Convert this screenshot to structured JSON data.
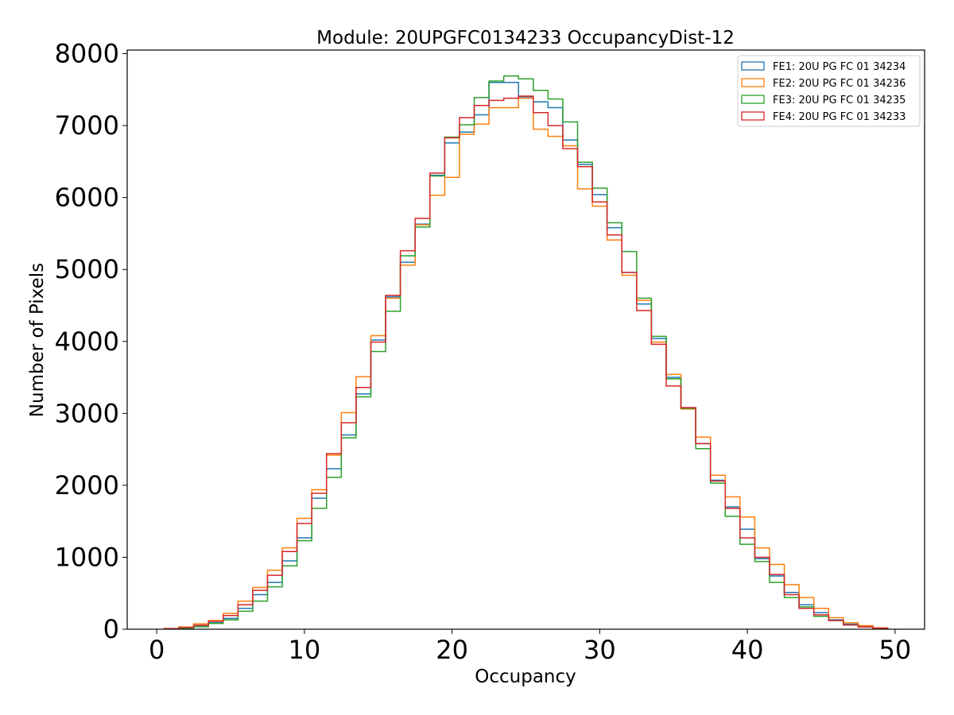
{
  "chart_data": {
    "type": "histogram-step",
    "title": "Module: 20UPGFC0134233 OccupancyDist-12",
    "xlabel": "Occupancy",
    "ylabel": "Number of Pixels",
    "xlim": [
      -2,
      52
    ],
    "ylim": [
      0,
      8050
    ],
    "xticks": [
      0,
      10,
      20,
      30,
      40,
      50
    ],
    "yticks": [
      0,
      1000,
      2000,
      3000,
      4000,
      5000,
      6000,
      7000,
      8000
    ],
    "grid": false,
    "legend_position": "top-right",
    "bins_start": 0.5,
    "bin_width": 1,
    "series": [
      {
        "name": "FE1: 20U PG FC 01 34234",
        "color": "#1f77b4",
        "values": [
          5,
          15,
          45,
          90,
          150,
          290,
          480,
          650,
          950,
          1270,
          1820,
          2230,
          2700,
          3270,
          4020,
          4620,
          5100,
          5630,
          6310,
          6760,
          6910,
          7150,
          7600,
          7600,
          7400,
          7330,
          7250,
          6800,
          6460,
          6040,
          5580,
          4960,
          4520,
          4040,
          3500,
          3080,
          2580,
          2070,
          1700,
          1390,
          980,
          740,
          510,
          340,
          230,
          130,
          70,
          40,
          20
        ]
      },
      {
        "name": "FE2: 20U PG FC 01 34236",
        "color": "#ff7f0e",
        "values": [
          10,
          30,
          75,
          120,
          220,
          390,
          580,
          820,
          1130,
          1540,
          1940,
          2420,
          3010,
          3510,
          4080,
          4600,
          5060,
          5620,
          6030,
          6280,
          6880,
          7020,
          7250,
          7250,
          7380,
          6950,
          6850,
          6720,
          6120,
          5880,
          5410,
          4920,
          4570,
          3990,
          3540,
          3060,
          2670,
          2140,
          1840,
          1560,
          1130,
          900,
          620,
          440,
          290,
          160,
          90,
          50,
          20
        ]
      },
      {
        "name": "FE3: 20U PG FC 01 34235",
        "color": "#2ca02c",
        "values": [
          5,
          10,
          35,
          80,
          130,
          250,
          390,
          590,
          880,
          1230,
          1680,
          2110,
          2660,
          3230,
          3860,
          4420,
          5190,
          5590,
          6300,
          6840,
          7010,
          7390,
          7620,
          7690,
          7650,
          7490,
          7370,
          7050,
          6490,
          6130,
          5650,
          5250,
          4600,
          4070,
          3480,
          3070,
          2510,
          2030,
          1570,
          1180,
          940,
          650,
          440,
          310,
          180,
          120,
          60,
          30,
          15
        ]
      },
      {
        "name": "FE4: 20U PG FC 01 34233",
        "color": "#d62728",
        "values": [
          8,
          25,
          55,
          110,
          190,
          340,
          540,
          750,
          1080,
          1470,
          1890,
          2440,
          2870,
          3360,
          3990,
          4640,
          5260,
          5710,
          6340,
          6830,
          7110,
          7280,
          7350,
          7380,
          7410,
          7180,
          7000,
          6680,
          6430,
          5940,
          5480,
          4960,
          4430,
          3960,
          3380,
          3080,
          2580,
          2060,
          1680,
          1270,
          1000,
          760,
          480,
          290,
          200,
          120,
          60,
          30,
          15
        ]
      }
    ]
  }
}
